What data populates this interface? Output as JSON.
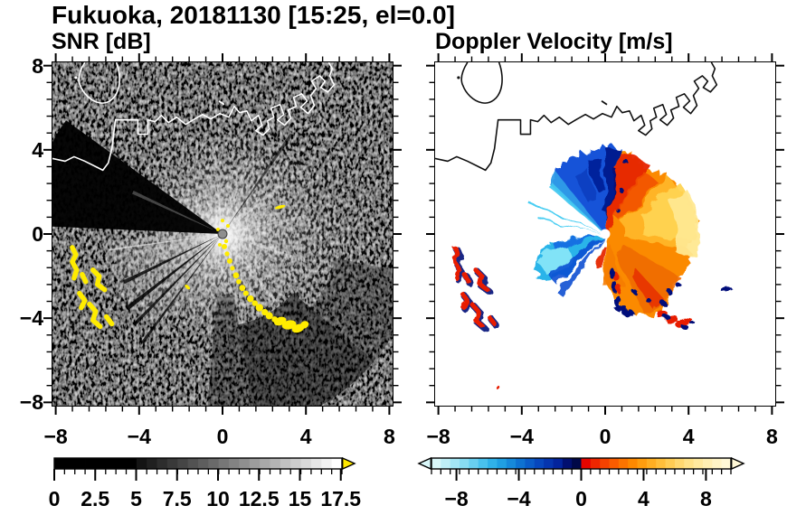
{
  "header": {
    "title": "Fukuoka, 20181130 [15:25, el=0.0]"
  },
  "station": "Fukuoka",
  "date": "20181130",
  "time": "15:25",
  "elevation": "0.0",
  "chart_data": [
    {
      "id": "snr",
      "type": "heatmap",
      "title": "SNR [dB]",
      "xlim": [
        -8.2,
        8.2
      ],
      "ylim": [
        -8.2,
        8.2
      ],
      "x_ticks": {
        "values": [
          -8,
          -4,
          0,
          4,
          8
        ],
        "labels": [
          "−8",
          "−4",
          "0",
          "4",
          "8"
        ]
      },
      "y_ticks": {
        "values": [
          8,
          4,
          0,
          -4,
          -8
        ],
        "labels": [
          "8",
          "4",
          "0",
          "−4",
          "−8"
        ]
      },
      "minor_tick_step": 0.8,
      "grid": false,
      "colorbar": {
        "range": [
          0,
          17.57
        ],
        "units": "dB",
        "tick_values": [
          0,
          2.5,
          5,
          7.5,
          10,
          12.5,
          15,
          17.5
        ],
        "tick_labels": [
          "0",
          "2.5",
          "5",
          "7.5",
          "10",
          "12.5",
          "15",
          "17.5"
        ],
        "over_arrow_color": "#ffe800",
        "segment_colors": [
          "#000000",
          "#000000",
          "#000000",
          "#000000",
          "#000000",
          "#000000",
          "#000000",
          "#000000",
          "#141414",
          "#202020",
          "#2d2d2d",
          "#393939",
          "#454545",
          "#525252",
          "#5e5e5e",
          "#6a6a6a",
          "#777777",
          "#838383",
          "#8f8f8f",
          "#9c9c9c",
          "#a8a8a8",
          "#b4b4b4",
          "#c1c1c1",
          "#cdcdcd",
          "#d9d9d9",
          "#e6e6e6",
          "#f2f2f2",
          "#ffffff"
        ]
      },
      "features": [
        {
          "name": "radar-site",
          "data_xy": [
            0,
            0
          ],
          "note": "gray disk at panel center"
        },
        {
          "name": "bright-snr-glow",
          "center_xy": [
            0,
            0
          ],
          "radius_units": 4.5,
          "note": "white radial glow with ray spokes, strongest N through E to S"
        },
        {
          "name": "blocked-sector-west",
          "azimuth_deg": [
            144,
            177
          ],
          "note": "black beam-blockage wedge"
        },
        {
          "name": "thin-blocked-rays-southwest",
          "azimuth_deg": [
            206,
            218,
            226,
            234
          ]
        },
        {
          "name": "ground-clutter-arc-yellow",
          "from_xy": [
            0.1,
            -0.6
          ],
          "to_xy": [
            3.7,
            -4.4
          ],
          "color": "#ffec00",
          "note": "saturated SNR chain running SE of radar"
        },
        {
          "name": "clutter-blobs-west-yellow",
          "data_xy": [
            [
              -7.1,
              -1.3
            ],
            [
              -5.9,
              -2.2
            ],
            [
              -6.3,
              -3.5
            ]
          ]
        },
        {
          "name": "coastline",
          "color": "#ffffff",
          "enters_left_at_y": 3.6,
          "exits_top_at_x": 4.3
        }
      ]
    },
    {
      "id": "doppler",
      "type": "heatmap",
      "title": "Doppler Velocity [m/s]",
      "xlim": [
        -8.2,
        8.2
      ],
      "ylim": [
        -8.2,
        8.2
      ],
      "x_ticks": {
        "values": [
          -8,
          -4,
          0,
          4,
          8
        ],
        "labels": [
          "−8",
          "−4",
          "0",
          "4",
          "8"
        ]
      },
      "y_ticks": {
        "values": [
          8,
          4,
          0,
          -4,
          -8
        ],
        "labels": [
          "8",
          "4",
          "0",
          "−4",
          "−8"
        ]
      },
      "minor_tick_step": 0.8,
      "grid": false,
      "colorbar": {
        "range": [
          -9.6,
          9.6
        ],
        "units": "m/s",
        "tick_values": [
          -8,
          -4,
          0,
          4,
          8
        ],
        "tick_labels": [
          "−8",
          "−4",
          "0",
          "4",
          "8"
        ],
        "segment_colors": [
          "#d9f7f9",
          "#bfeff7",
          "#a4e6f5",
          "#88dcf3",
          "#69cff1",
          "#49c1ee",
          "#30b1e9",
          "#209fe2",
          "#1689da",
          "#0e72d1",
          "#0a5cc8",
          "#0747bd",
          "#0535ae",
          "#03249c",
          "#020f70",
          "#010848",
          "#e60500",
          "#ee2600",
          "#f44200",
          "#f95c00",
          "#fc7400",
          "#fe8900",
          "#ff9d0e",
          "#ffae22",
          "#ffbe3a",
          "#ffcc54",
          "#ffd870",
          "#ffe289",
          "#ffe99f",
          "#ffefb3",
          "#fff4c6",
          "#fff8d6"
        ]
      },
      "features": [
        {
          "name": "approaching-flow-blue-fan",
          "azimuth_deg": [
            80,
            138
          ],
          "radius_units": 4,
          "values_mps": [
            -9,
            -3
          ],
          "colors": [
            "#03188c",
            "#1353d8",
            "#2f9ce8"
          ]
        },
        {
          "name": "approaching-cyan-rays",
          "azimuth_deg": [
            157.5,
            168
          ],
          "values_mps": [
            -5,
            -3
          ]
        },
        {
          "name": "approaching-wedge-southwest",
          "azimuth_deg": [
            190,
            236
          ],
          "radius_units": 3.8,
          "values_mps": [
            -7,
            -2
          ],
          "colors": [
            "#86e6f8",
            "#29b4e9",
            "#0d4fd2"
          ]
        },
        {
          "name": "receding-flow-warm-fan",
          "azimuth_deg": [
            -93,
            80
          ],
          "radius_units": 4.3,
          "values_mps": [
            2,
            9
          ],
          "colors": [
            "#e62400",
            "#fb8a00",
            "#ffd452",
            "#ffe890"
          ]
        },
        {
          "name": "aliased-navy-specks",
          "note": "dark navy pixels along fan boundaries (near ±Nyquist)"
        },
        {
          "name": "clutter-spots-west-red",
          "data_xy": [
            [
              -7.1,
              -1.3
            ],
            [
              -5.9,
              -2.2
            ],
            [
              -6.3,
              -3.5
            ]
          ],
          "colors": [
            "#e81e00",
            "#021078"
          ]
        },
        {
          "name": "clutter-spots-southeast-red",
          "data_xy": [
            [
              2.7,
              -3.7
            ],
            [
              3.6,
              -4.2
            ]
          ]
        },
        {
          "name": "coastline",
          "color": "#0f0f0f"
        }
      ]
    }
  ]
}
